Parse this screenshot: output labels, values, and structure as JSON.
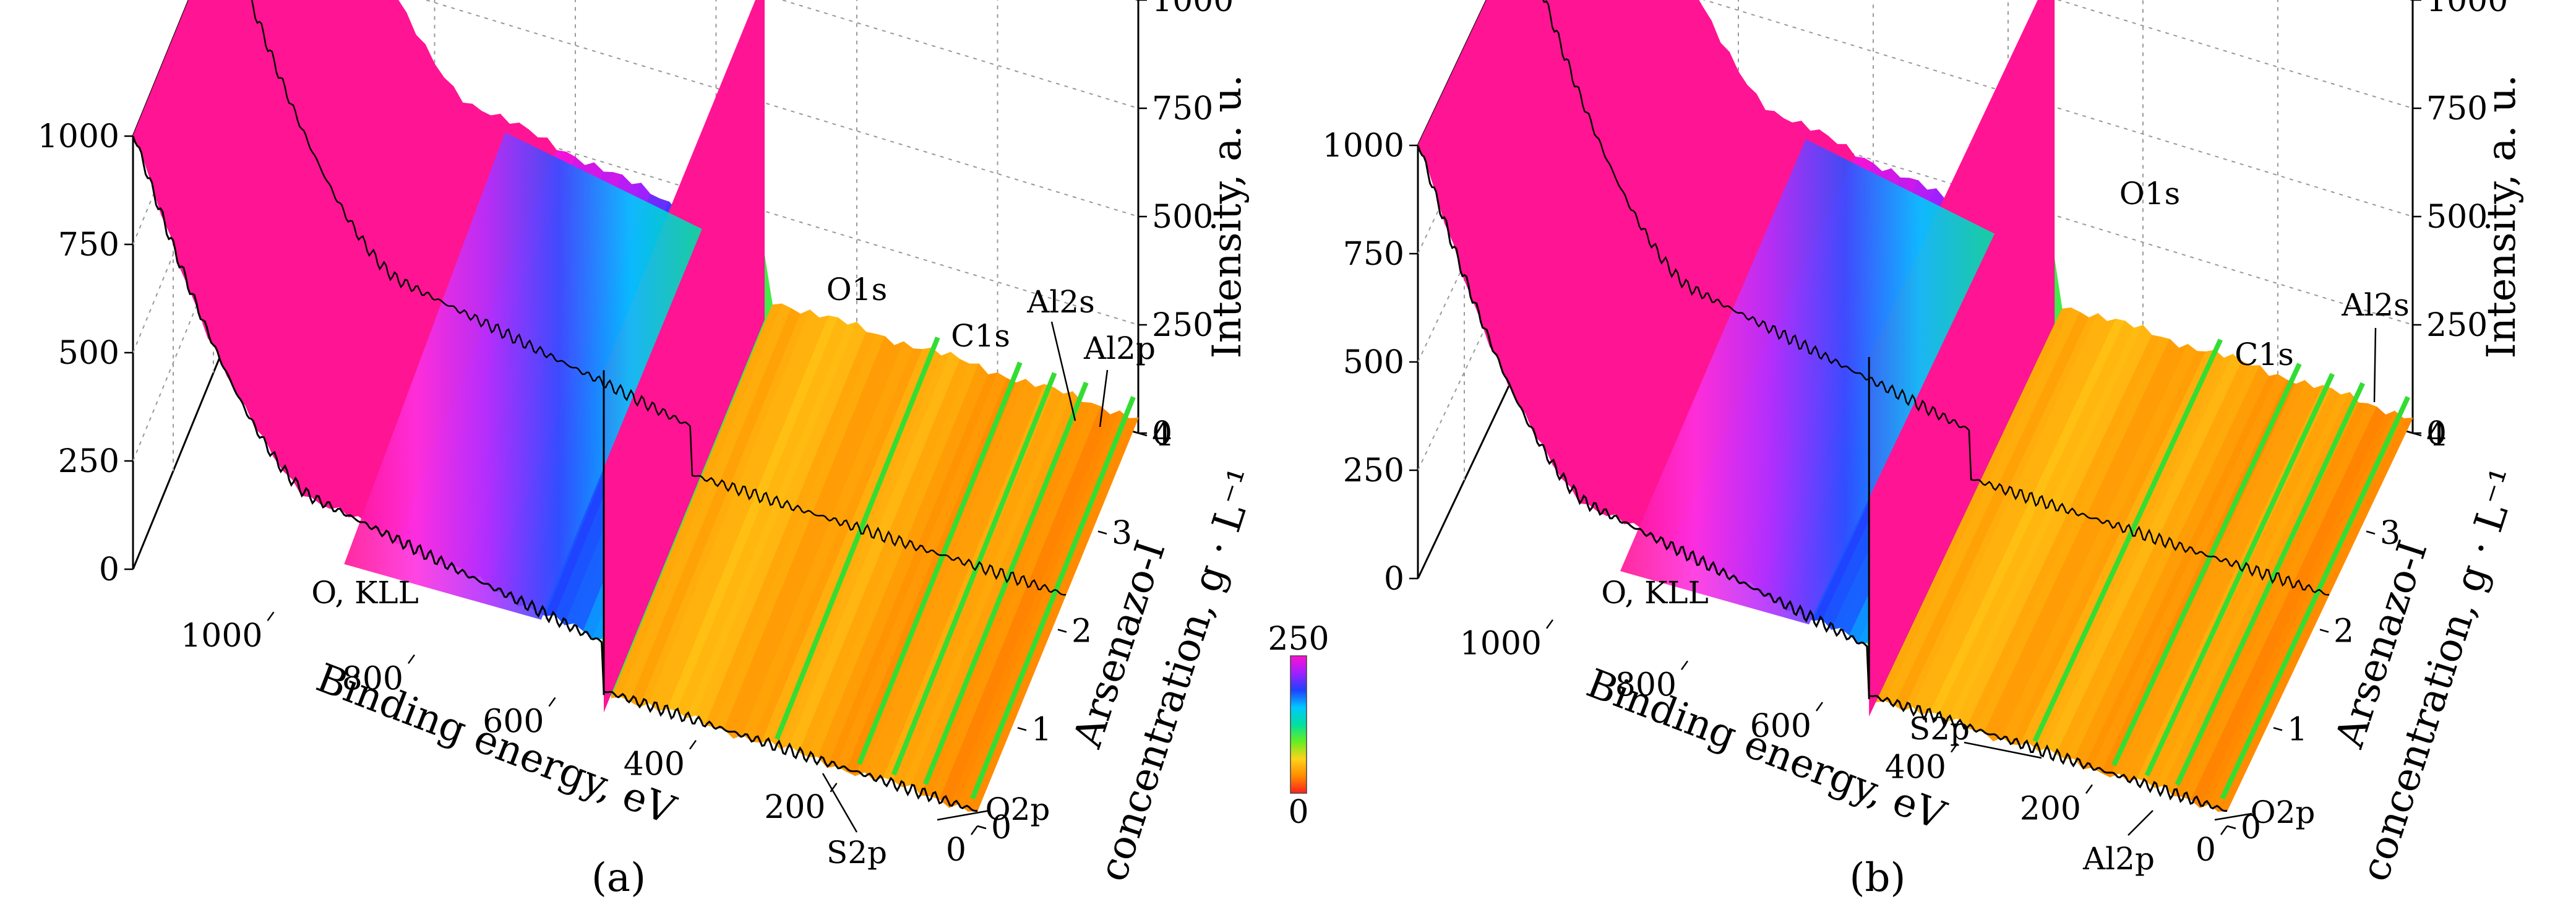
{
  "colorbar": {
    "min_label": "0",
    "max_label": "250",
    "stops": [
      "#ff2020",
      "#ff8c00",
      "#ffd21a",
      "#66ee22",
      "#00e0a0",
      "#00c8ff",
      "#2040ff",
      "#a020ff",
      "#ff10d0"
    ]
  },
  "colors": {
    "saturated": "#ff1493",
    "trace": "#000000",
    "grid": "#999999"
  },
  "chart_data": [
    {
      "type": "surface",
      "panel_label": "(a)",
      "xlabel": "Binding energy, eV",
      "ylabel_line1": "Arsenazo-I",
      "ylabel_line2": "concentration, g · L⁻¹",
      "zlabel": "Intensity, a. u.",
      "x_ticks": [
        "1000",
        "800",
        "600",
        "400",
        "200",
        "0"
      ],
      "y_ticks": [
        "0",
        "1",
        "2",
        "3",
        "4"
      ],
      "z_ticks_left": [
        "0",
        "250",
        "500",
        "750",
        "1000"
      ],
      "z_ticks_right": [
        "0",
        "250",
        "500",
        "750",
        "1000"
      ],
      "xlim": [
        1200,
        0
      ],
      "ylim": [
        0,
        4
      ],
      "zlim": [
        0,
        1000
      ],
      "peaks": [
        {
          "label": "O, KLL",
          "energy": 978
        },
        {
          "label": "O1s",
          "energy": 531
        },
        {
          "label": "C1s",
          "energy": 285
        },
        {
          "label": "S2p",
          "energy": 168
        },
        {
          "label": "Al2s",
          "energy": 119
        },
        {
          "label": "Al2p",
          "energy": 74
        },
        {
          "label": "O2p",
          "energy": 7
        }
      ]
    },
    {
      "type": "surface",
      "panel_label": "(b)",
      "xlabel": "Binding energy, eV",
      "ylabel_line1": "Arsenazo-I",
      "ylabel_line2": "concentration, g · L⁻¹",
      "zlabel": "Intensity, a. u.",
      "x_ticks": [
        "1000",
        "800",
        "600",
        "400",
        "200",
        "0"
      ],
      "y_ticks": [
        "0",
        "1",
        "2",
        "3",
        "4"
      ],
      "z_ticks_left": [
        "0",
        "250",
        "500",
        "750",
        "1000"
      ],
      "z_ticks_right": [
        "0",
        "250",
        "500",
        "750",
        "1000"
      ],
      "xlim": [
        1200,
        0
      ],
      "ylim": [
        0,
        4
      ],
      "zlim": [
        0,
        1000
      ],
      "peaks": [
        {
          "label": "O, KLL",
          "energy": 978
        },
        {
          "label": "O1s",
          "energy": 531
        },
        {
          "label": "C1s",
          "energy": 285
        },
        {
          "label": "S2p",
          "energy": 168
        },
        {
          "label": "Al2s",
          "energy": 119
        },
        {
          "label": "Al2p",
          "energy": 74
        },
        {
          "label": "O2p",
          "energy": 7
        }
      ]
    }
  ]
}
